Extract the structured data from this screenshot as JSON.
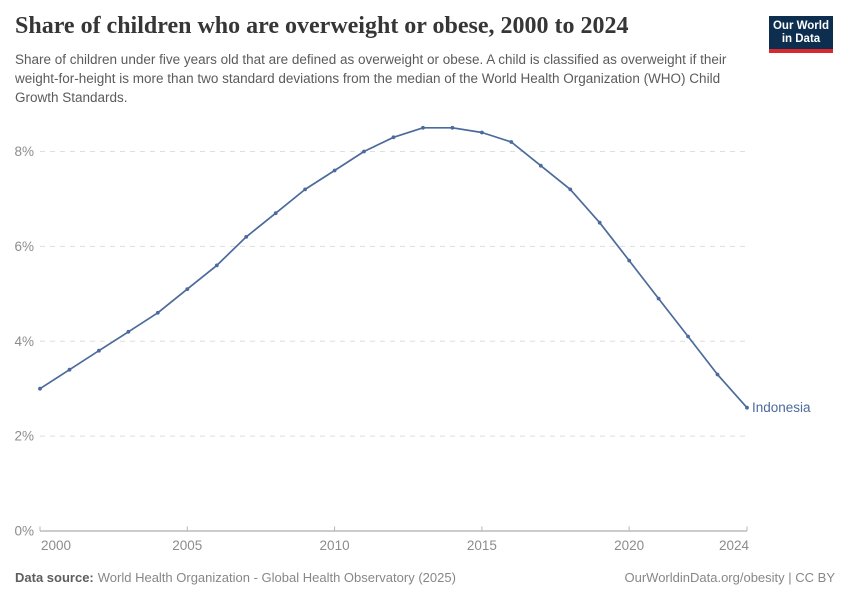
{
  "header": {
    "title": "Share of children who are overweight or obese, 2000 to 2024",
    "subtitle": "Share of children under five years old that are defined as overweight or obese. A child is classified as overweight if their weight-for-height is more than two standard deviations from the median of the World Health Organization (WHO) Child Growth Standards."
  },
  "logo": {
    "line1": "Our World",
    "line2": "in Data",
    "bg_color": "#0d2e4e",
    "bar_color": "#d8292f"
  },
  "chart_data": {
    "type": "line",
    "title": "Share of children who are overweight or obese, 2000 to 2024",
    "x": [
      2000,
      2001,
      2002,
      2003,
      2004,
      2005,
      2006,
      2007,
      2008,
      2009,
      2010,
      2011,
      2012,
      2013,
      2014,
      2015,
      2016,
      2017,
      2018,
      2019,
      2020,
      2021,
      2022,
      2023,
      2024
    ],
    "series": [
      {
        "name": "Indonesia",
        "color": "#4c6a9c",
        "values": [
          3.0,
          3.4,
          3.8,
          4.2,
          4.6,
          5.1,
          5.6,
          6.2,
          6.7,
          7.2,
          7.6,
          8.0,
          8.3,
          8.5,
          8.5,
          8.4,
          8.2,
          7.7,
          7.2,
          6.5,
          5.7,
          4.9,
          4.1,
          3.3,
          2.6
        ]
      }
    ],
    "xlabel": "",
    "ylabel": "",
    "xlim": [
      2000,
      2024
    ],
    "ylim": [
      0,
      8
    ],
    "x_ticks": [
      2000,
      2005,
      2010,
      2015,
      2020,
      2024
    ],
    "y_ticks": [
      0,
      2,
      4,
      6,
      8
    ],
    "y_tick_suffix": "%",
    "grid": "horizontal-dashed",
    "legend_position": "end-of-line-label"
  },
  "footer": {
    "source_label": "Data source:",
    "source_text": "World Health Organization - Global Health Observatory (2025)",
    "credit": "OurWorldinData.org/obesity | CC BY"
  },
  "colors": {
    "accent_line": "#4c6a9c",
    "grid": "#dedede",
    "axis": "#9a9a9a",
    "tick": "#b5b5b5",
    "axis_label": "#8c8c8c",
    "title": "#363636",
    "subtitle": "#5b5b5b",
    "footer": "#878787"
  }
}
